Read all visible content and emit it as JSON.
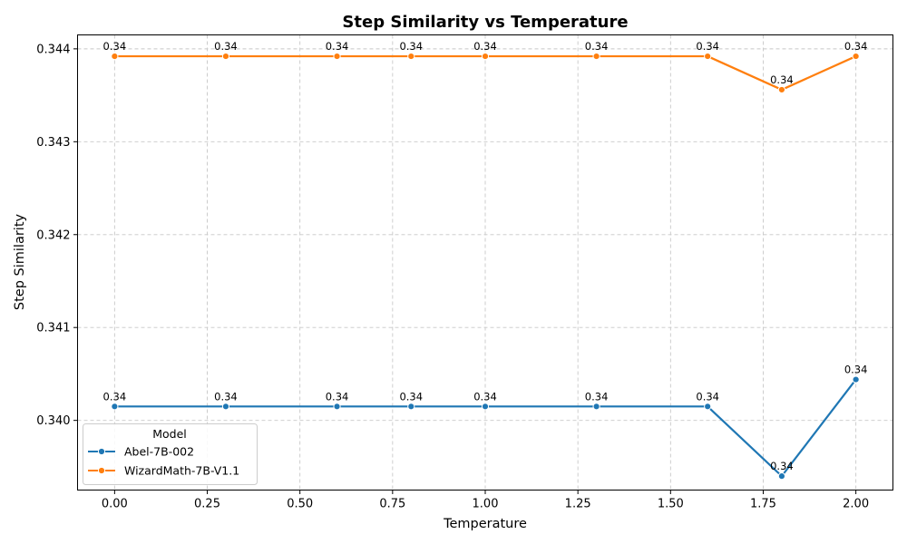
{
  "chart_data": {
    "type": "line",
    "title": "Step Similarity vs Temperature",
    "xlabel": "Temperature",
    "ylabel": "Step Similarity",
    "x": [
      0.0,
      0.3,
      0.6,
      0.8,
      1.0,
      1.3,
      1.6,
      1.8,
      2.0
    ],
    "xlim": [
      -0.1,
      2.1
    ],
    "ylim": [
      0.33925,
      0.34415
    ],
    "x_ticks": [
      0.0,
      0.25,
      0.5,
      0.75,
      1.0,
      1.25,
      1.5,
      1.75,
      2.0
    ],
    "x_tick_labels": [
      "0.00",
      "0.25",
      "0.50",
      "0.75",
      "1.00",
      "1.25",
      "1.50",
      "1.75",
      "2.00"
    ],
    "y_ticks": [
      0.34,
      0.341,
      0.342,
      0.343,
      0.344
    ],
    "y_tick_labels": [
      "0.340",
      "0.341",
      "0.342",
      "0.343",
      "0.344"
    ],
    "grid": true,
    "legend": {
      "title": "Model",
      "placement": "lower-left"
    },
    "series": [
      {
        "name": "Abel-7B-002",
        "color": "#1f77b4",
        "values": [
          0.34015,
          0.34015,
          0.34015,
          0.34015,
          0.34015,
          0.34015,
          0.34015,
          0.3394,
          0.34044
        ],
        "labels": [
          "0.34",
          "0.34",
          "0.34",
          "0.34",
          "0.34",
          "0.34",
          "0.34",
          "0.34",
          "0.34"
        ]
      },
      {
        "name": "WizardMath-7B-V1.1",
        "color": "#ff7f0e",
        "values": [
          0.34392,
          0.34392,
          0.34392,
          0.34392,
          0.34392,
          0.34392,
          0.34392,
          0.34356,
          0.34392
        ],
        "labels": [
          "0.34",
          "0.34",
          "0.34",
          "0.34",
          "0.34",
          "0.34",
          "0.34",
          "0.34",
          "0.34"
        ]
      }
    ]
  }
}
